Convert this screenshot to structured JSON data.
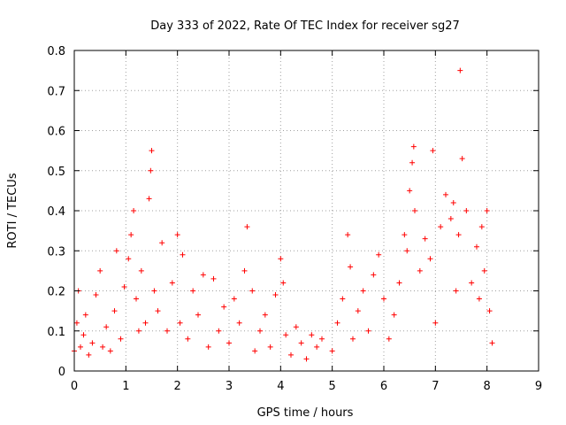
{
  "chart_data": {
    "type": "scatter",
    "title": "Day 333 of 2022, Rate Of TEC Index for receiver sg27",
    "xlabel": "GPS time / hours",
    "ylabel": "ROTI / TECUs",
    "xlim": [
      0,
      9
    ],
    "ylim": [
      0,
      0.8
    ],
    "x_ticks": [
      "0",
      "1",
      "2",
      "3",
      "4",
      "5",
      "6",
      "7",
      "8",
      "9"
    ],
    "y_ticks": [
      "0",
      "0.1",
      "0.2",
      "0.3",
      "0.4",
      "0.5",
      "0.6",
      "0.7",
      "0.8"
    ],
    "grid": true,
    "marker": "plus",
    "color": "#ff0000",
    "series": [
      {
        "points": [
          [
            0.0,
            0.05
          ],
          [
            0.05,
            0.12
          ],
          [
            0.08,
            0.2
          ],
          [
            0.12,
            0.06
          ],
          [
            0.18,
            0.09
          ],
          [
            0.22,
            0.14
          ],
          [
            0.28,
            0.04
          ],
          [
            0.35,
            0.07
          ],
          [
            0.42,
            0.19
          ],
          [
            0.5,
            0.25
          ],
          [
            0.55,
            0.06
          ],
          [
            0.62,
            0.11
          ],
          [
            0.7,
            0.05
          ],
          [
            0.78,
            0.15
          ],
          [
            0.82,
            0.3
          ],
          [
            0.9,
            0.08
          ],
          [
            0.97,
            0.21
          ],
          [
            1.05,
            0.28
          ],
          [
            1.1,
            0.34
          ],
          [
            1.15,
            0.4
          ],
          [
            1.2,
            0.18
          ],
          [
            1.25,
            0.1
          ],
          [
            1.3,
            0.25
          ],
          [
            1.38,
            0.12
          ],
          [
            1.45,
            0.43
          ],
          [
            1.48,
            0.5
          ],
          [
            1.5,
            0.55
          ],
          [
            1.55,
            0.2
          ],
          [
            1.62,
            0.15
          ],
          [
            1.7,
            0.32
          ],
          [
            1.8,
            0.1
          ],
          [
            1.9,
            0.22
          ],
          [
            2.0,
            0.34
          ],
          [
            2.05,
            0.12
          ],
          [
            2.1,
            0.29
          ],
          [
            2.2,
            0.08
          ],
          [
            2.3,
            0.2
          ],
          [
            2.4,
            0.14
          ],
          [
            2.5,
            0.24
          ],
          [
            2.6,
            0.06
          ],
          [
            2.7,
            0.23
          ],
          [
            2.8,
            0.1
          ],
          [
            2.9,
            0.16
          ],
          [
            3.0,
            0.07
          ],
          [
            3.1,
            0.18
          ],
          [
            3.2,
            0.12
          ],
          [
            3.3,
            0.25
          ],
          [
            3.35,
            0.36
          ],
          [
            3.45,
            0.2
          ],
          [
            3.5,
            0.05
          ],
          [
            3.6,
            0.1
          ],
          [
            3.7,
            0.14
          ],
          [
            3.8,
            0.06
          ],
          [
            3.9,
            0.19
          ],
          [
            4.0,
            0.28
          ],
          [
            4.05,
            0.22
          ],
          [
            4.1,
            0.09
          ],
          [
            4.2,
            0.04
          ],
          [
            4.3,
            0.11
          ],
          [
            4.4,
            0.07
          ],
          [
            4.5,
            0.03
          ],
          [
            4.6,
            0.09
          ],
          [
            4.7,
            0.06
          ],
          [
            4.8,
            0.08
          ],
          [
            5.0,
            0.05
          ],
          [
            5.1,
            0.12
          ],
          [
            5.2,
            0.18
          ],
          [
            5.3,
            0.34
          ],
          [
            5.35,
            0.26
          ],
          [
            5.4,
            0.08
          ],
          [
            5.5,
            0.15
          ],
          [
            5.6,
            0.2
          ],
          [
            5.7,
            0.1
          ],
          [
            5.8,
            0.24
          ],
          [
            5.9,
            0.29
          ],
          [
            6.0,
            0.18
          ],
          [
            6.1,
            0.08
          ],
          [
            6.2,
            0.14
          ],
          [
            6.3,
            0.22
          ],
          [
            6.4,
            0.34
          ],
          [
            6.45,
            0.3
          ],
          [
            6.5,
            0.45
          ],
          [
            6.55,
            0.52
          ],
          [
            6.58,
            0.56
          ],
          [
            6.6,
            0.4
          ],
          [
            6.7,
            0.25
          ],
          [
            6.8,
            0.33
          ],
          [
            6.9,
            0.28
          ],
          [
            6.95,
            0.55
          ],
          [
            7.0,
            0.12
          ],
          [
            7.1,
            0.36
          ],
          [
            7.2,
            0.44
          ],
          [
            7.3,
            0.38
          ],
          [
            7.35,
            0.42
          ],
          [
            7.4,
            0.2
          ],
          [
            7.45,
            0.34
          ],
          [
            7.48,
            0.75
          ],
          [
            7.52,
            0.53
          ],
          [
            7.6,
            0.4
          ],
          [
            7.7,
            0.22
          ],
          [
            7.8,
            0.31
          ],
          [
            7.85,
            0.18
          ],
          [
            7.9,
            0.36
          ],
          [
            7.95,
            0.25
          ],
          [
            8.0,
            0.4
          ],
          [
            8.05,
            0.15
          ],
          [
            8.1,
            0.07
          ]
        ]
      }
    ]
  }
}
